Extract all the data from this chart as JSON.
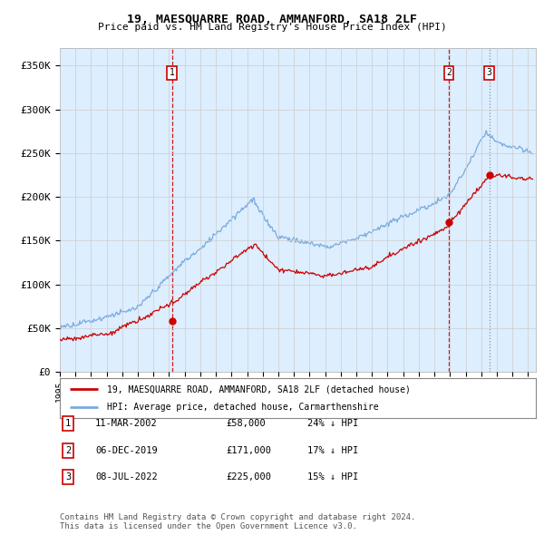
{
  "title": "19, MAESQUARRE ROAD, AMMANFORD, SA18 2LF",
  "subtitle": "Price paid vs. HM Land Registry's House Price Index (HPI)",
  "ylabel_ticks": [
    "£0",
    "£50K",
    "£100K",
    "£150K",
    "£200K",
    "£250K",
    "£300K",
    "£350K"
  ],
  "ytick_values": [
    0,
    50000,
    100000,
    150000,
    200000,
    250000,
    300000,
    350000
  ],
  "ylim": [
    0,
    370000
  ],
  "xlim_start": 1995.0,
  "xlim_end": 2025.5,
  "red_line_color": "#cc0000",
  "blue_line_color": "#7aaadd",
  "grid_color": "#cccccc",
  "chart_bg_color": "#ddeeff",
  "background_color": "#ffffff",
  "sale_dates": [
    2002.19,
    2019.92,
    2022.52
  ],
  "sale_prices": [
    58000,
    171000,
    225000
  ],
  "sale_labels": [
    "1",
    "2",
    "3"
  ],
  "dashed_line_colors": [
    "#cc0000",
    "#cc0000",
    "#888888"
  ],
  "dashed_line_styles": [
    "--",
    "--",
    ":"
  ],
  "legend_label_red": "19, MAESQUARRE ROAD, AMMANFORD, SA18 2LF (detached house)",
  "legend_label_blue": "HPI: Average price, detached house, Carmarthenshire",
  "table_rows": [
    {
      "num": "1",
      "date": "11-MAR-2002",
      "price": "£58,000",
      "change": "24% ↓ HPI"
    },
    {
      "num": "2",
      "date": "06-DEC-2019",
      "price": "£171,000",
      "change": "17% ↓ HPI"
    },
    {
      "num": "3",
      "date": "08-JUL-2022",
      "price": "£225,000",
      "change": "15% ↓ HPI"
    }
  ],
  "footer": "Contains HM Land Registry data © Crown copyright and database right 2024.\nThis data is licensed under the Open Government Licence v3.0."
}
